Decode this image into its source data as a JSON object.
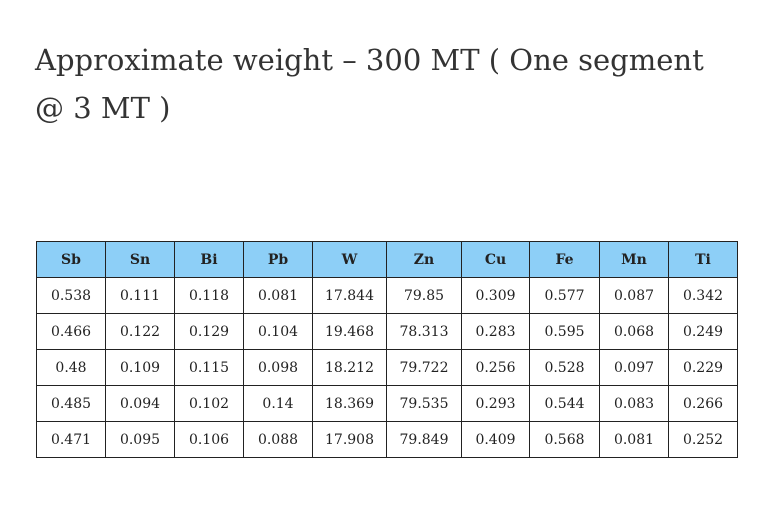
{
  "title": "Approximate weight – 300 MT ( One segment @ 3 MT )",
  "table": {
    "header": [
      "Sb",
      "Sn",
      "Bi",
      "Pb",
      "W",
      "Zn",
      "Cu",
      "Fe",
      "Mn",
      "Ti"
    ],
    "rows": [
      [
        0.538,
        0.111,
        0.118,
        0.081,
        17.844,
        79.85,
        0.309,
        0.577,
        0.087,
        0.342
      ],
      [
        0.466,
        0.122,
        0.129,
        0.104,
        19.468,
        78.313,
        0.283,
        0.595,
        0.068,
        0.249
      ],
      [
        0.48,
        0.109,
        0.115,
        0.098,
        18.212,
        79.722,
        0.256,
        0.528,
        0.097,
        0.229
      ],
      [
        0.485,
        0.094,
        0.102,
        0.14,
        18.369,
        79.535,
        0.293,
        0.544,
        0.083,
        0.266
      ],
      [
        0.471,
        0.095,
        0.106,
        0.088,
        17.908,
        79.849,
        0.409,
        0.568,
        0.081,
        0.252
      ]
    ]
  }
}
